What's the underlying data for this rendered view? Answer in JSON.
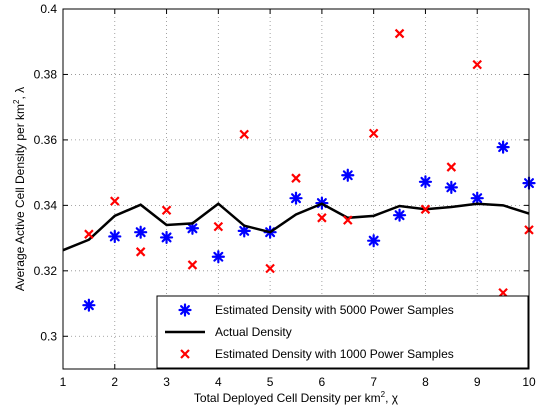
{
  "chart_data": {
    "type": "scatter",
    "xlabel_text": "Total Deployed Cell Density per km",
    "xlabel_sup": "2",
    "xlabel_suffix": ", χ",
    "ylabel_text": "Average Active Cell Density per km",
    "ylabel_sup": "2",
    "ylabel_suffix": ", λ",
    "xlim": [
      1,
      10
    ],
    "ylim": [
      0.29,
      0.4
    ],
    "xticks": [
      "1",
      "2",
      "3",
      "4",
      "5",
      "6",
      "7",
      "8",
      "9",
      "10"
    ],
    "yticks": [
      "0.3",
      "0.32",
      "0.34",
      "0.36",
      "0.38",
      "0.4"
    ],
    "grid": true,
    "legend_position": "bottom-right",
    "series": [
      {
        "name": "Estimated Density with 5000 Power Samples",
        "kind": "marker-asterisk",
        "color": "#0000ff",
        "x": [
          1.5,
          2,
          2.5,
          3,
          3.5,
          4,
          4.5,
          5,
          5.5,
          6,
          6.5,
          7,
          7.5,
          8,
          8.5,
          9,
          9.5,
          10
        ],
        "y": [
          0.3095,
          0.3305,
          0.3318,
          0.3302,
          0.333,
          0.3243,
          0.3322,
          0.3318,
          0.3422,
          0.3407,
          0.3492,
          0.3292,
          0.337,
          0.3472,
          0.3455,
          0.3422,
          0.3578,
          0.3468
        ]
      },
      {
        "name": "Actual Density",
        "kind": "line",
        "color": "#000000",
        "x": [
          1,
          1.5,
          2,
          2.5,
          3,
          3.5,
          4,
          4.5,
          5,
          5.5,
          6,
          6.5,
          7,
          7.5,
          8,
          8.5,
          9,
          9.5,
          10
        ],
        "y": [
          0.3263,
          0.3295,
          0.3368,
          0.3402,
          0.334,
          0.3345,
          0.3405,
          0.3338,
          0.3318,
          0.3372,
          0.3405,
          0.3362,
          0.3368,
          0.3398,
          0.3388,
          0.3395,
          0.3405,
          0.34,
          0.3375
        ]
      },
      {
        "name": "Estimated Density with 1000 Power Samples",
        "kind": "marker-x",
        "color": "#ff0000",
        "x": [
          1.5,
          2,
          2.5,
          3,
          3.5,
          4,
          4.5,
          5,
          5.5,
          6,
          6.5,
          7,
          7.5,
          8,
          8.5,
          9,
          9.5,
          10
        ],
        "y": [
          0.3312,
          0.3413,
          0.3258,
          0.3385,
          0.3218,
          0.3335,
          0.3617,
          0.3207,
          0.3483,
          0.3362,
          0.3355,
          0.362,
          0.3925,
          0.3388,
          0.3517,
          0.383,
          0.3133,
          0.3325
        ]
      }
    ]
  }
}
